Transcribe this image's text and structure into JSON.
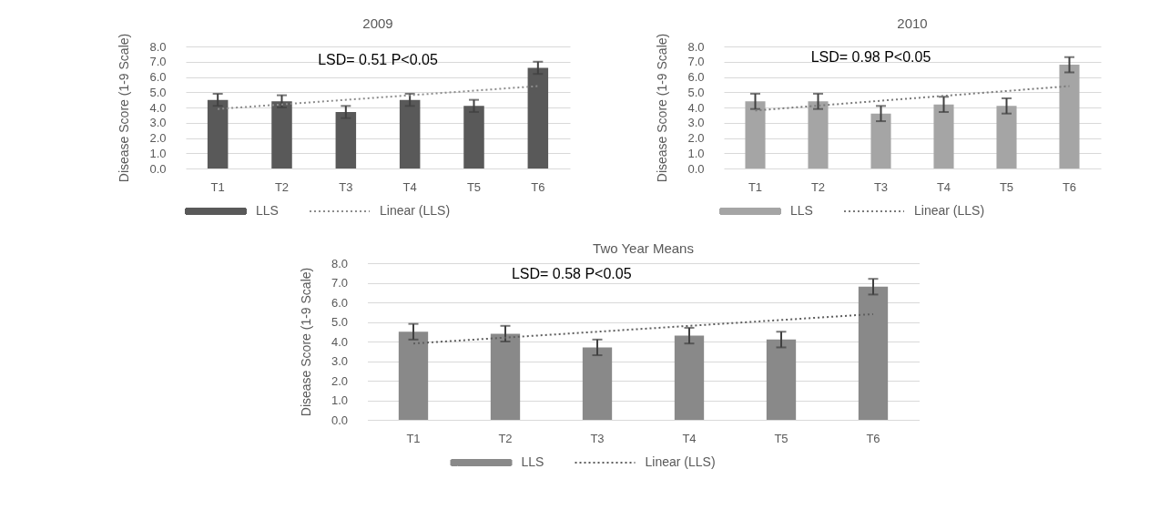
{
  "chart_data": [
    {
      "type": "bar",
      "title": "2009",
      "ylabel": "Disease Score (1-9 Scale)",
      "categories": [
        "T1",
        "T2",
        "T3",
        "T4",
        "T5",
        "T6"
      ],
      "series": [
        {
          "name": "LLS",
          "color": "#595959",
          "values": [
            4.5,
            4.4,
            3.7,
            4.5,
            4.1,
            6.6
          ],
          "errors": [
            0.4,
            0.4,
            0.4,
            0.4,
            0.4,
            0.4
          ]
        },
        {
          "name": "Linear (LLS)",
          "type": "line",
          "color": "#8c8c8c",
          "line_style": "dotted",
          "x": [
            "T1",
            "T6"
          ],
          "values": [
            3.9,
            5.4
          ]
        }
      ],
      "ylim": [
        0,
        8
      ],
      "yticks": [
        {
          "value": 0,
          "label": "0.0"
        },
        {
          "value": 1,
          "label": "1.0"
        },
        {
          "value": 2,
          "label": "2.0"
        },
        {
          "value": 3,
          "label": "3.0"
        },
        {
          "value": 4,
          "label": "4.0"
        },
        {
          "value": 5,
          "label": "5.0"
        },
        {
          "value": 6,
          "label": "6.0"
        },
        {
          "value": 7,
          "label": "7.0"
        },
        {
          "value": 8,
          "label": "8.0"
        }
      ],
      "grid": "y",
      "legend": "bottom",
      "annotations": [
        "LSD= 0.51 P<0.05"
      ]
    },
    {
      "type": "bar",
      "title": "2010",
      "ylabel": "Disease Score (1-9 Scale)",
      "categories": [
        "T1",
        "T2",
        "T3",
        "T4",
        "T5",
        "T6"
      ],
      "series": [
        {
          "name": "LLS",
          "color": "#a5a5a5",
          "values": [
            4.4,
            4.4,
            3.6,
            4.2,
            4.1,
            6.8
          ],
          "errors": [
            0.5,
            0.5,
            0.5,
            0.5,
            0.5,
            0.5
          ]
        },
        {
          "name": "Linear (LLS)",
          "type": "line",
          "color": "#7a7a7a",
          "line_style": "dotted",
          "x": [
            "T1",
            "T6"
          ],
          "values": [
            3.8,
            5.4
          ]
        }
      ],
      "ylim": [
        0,
        8
      ],
      "yticks": [
        {
          "value": 0,
          "label": "0.0"
        },
        {
          "value": 1,
          "label": "1.0"
        },
        {
          "value": 2,
          "label": "2.0"
        },
        {
          "value": 3,
          "label": "3.0"
        },
        {
          "value": 4,
          "label": "4.0"
        },
        {
          "value": 5,
          "label": "5.0"
        },
        {
          "value": 6,
          "label": "6.0"
        },
        {
          "value": 7,
          "label": "7.0"
        },
        {
          "value": 8,
          "label": "8.0"
        }
      ],
      "grid": "y",
      "legend": "bottom",
      "annotations": [
        "LSD=  0.98 P<0.05"
      ]
    },
    {
      "type": "bar",
      "title": "Two Year Means",
      "ylabel": "Disease Score (1-9 Scale)",
      "categories": [
        "T1",
        "T2",
        "T3",
        "T4",
        "T5",
        "T6"
      ],
      "series": [
        {
          "name": "LLS",
          "color": "#898989",
          "values": [
            4.5,
            4.4,
            3.7,
            4.3,
            4.1,
            6.8
          ],
          "errors": [
            0.4,
            0.4,
            0.4,
            0.4,
            0.4,
            0.4
          ]
        },
        {
          "name": "Linear (LLS)",
          "type": "line",
          "color": "#5e5e5e",
          "line_style": "dotted",
          "x": [
            "T1",
            "T6"
          ],
          "values": [
            3.9,
            5.4
          ]
        }
      ],
      "ylim": [
        0,
        8
      ],
      "yticks": [
        {
          "value": 0,
          "label": "0.0"
        },
        {
          "value": 1,
          "label": "1.0"
        },
        {
          "value": 2,
          "label": "2.0"
        },
        {
          "value": 3,
          "label": "3.0"
        },
        {
          "value": 4,
          "label": "4.0"
        },
        {
          "value": 5,
          "label": "5.0"
        },
        {
          "value": 6,
          "label": "6.0"
        },
        {
          "value": 7,
          "label": "7.0"
        },
        {
          "value": 8,
          "label": "8.0"
        }
      ],
      "grid": "y",
      "legend": "bottom",
      "annotations": [
        "LSD= 0.58 P<0.05"
      ]
    }
  ]
}
